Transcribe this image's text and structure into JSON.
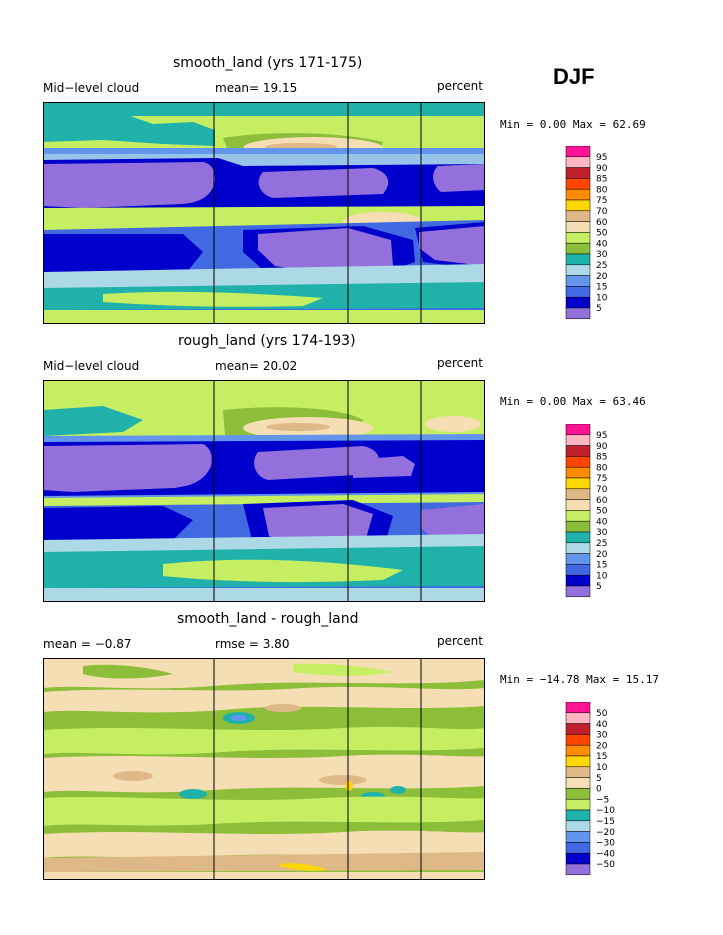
{
  "season": "DJF",
  "panels": [
    {
      "title": "smooth_land (yrs 171-175)",
      "left_label": "Mid−level cloud",
      "center_label": "mean=  19.15",
      "right_label": "percent",
      "minmax_label": "Min =   0.00 Max =  62.69"
    },
    {
      "title": "rough_land (yrs 174-193)",
      "left_label": "Mid−level cloud",
      "center_label": "mean=  20.02",
      "right_label": "percent",
      "minmax_label": "Min =   0.00 Max =  63.46"
    },
    {
      "title": "smooth_land - rough_land",
      "left_label": "mean =  −0.87",
      "center_label": "rmse =   3.80",
      "right_label": "percent",
      "minmax_label": "Min = −14.78 Max =  15.17"
    }
  ],
  "colorbar_field": {
    "labels": [
      "95",
      "90",
      "85",
      "80",
      "75",
      "70",
      "60",
      "50",
      "40",
      "30",
      "25",
      "20",
      "15",
      "10",
      "5"
    ],
    "colors": [
      "#ff1493",
      "#ffb6c1",
      "#c0202c",
      "#ff4500",
      "#ff8c00",
      "#ffd700",
      "#deb887",
      "#f5deb3",
      "#c5ee62",
      "#8cbe3a",
      "#20b2aa",
      "#add8e6",
      "#6495ed",
      "#4169e1",
      "#0000cd",
      "#9370db"
    ]
  },
  "colorbar_diff": {
    "labels": [
      "50",
      "40",
      "30",
      "20",
      "15",
      "10",
      "5",
      "0",
      "−5",
      "−10",
      "−15",
      "−20",
      "−30",
      "−40",
      "−50"
    ],
    "colors": [
      "#ff1493",
      "#ffb6c1",
      "#c0202c",
      "#ff4500",
      "#ff8c00",
      "#ffd700",
      "#deb887",
      "#f5deb3",
      "#8cbe3a",
      "#c5ee62",
      "#20b2aa",
      "#add8e6",
      "#6495ed",
      "#4169e1",
      "#0000cd",
      "#9370db"
    ]
  },
  "chart_data": [
    {
      "type": "heatmap",
      "title": "smooth_land (yrs 171-175)",
      "variable": "Mid-level cloud",
      "units": "percent",
      "season": "DJF",
      "mean": 19.15,
      "min": 0.0,
      "max": 62.69,
      "contour_levels": [
        5,
        10,
        15,
        20,
        25,
        30,
        40,
        50,
        60,
        70,
        75,
        80,
        85,
        90,
        95
      ]
    },
    {
      "type": "heatmap",
      "title": "rough_land (yrs 174-193)",
      "variable": "Mid-level cloud",
      "units": "percent",
      "season": "DJF",
      "mean": 20.02,
      "min": 0.0,
      "max": 63.46,
      "contour_levels": [
        5,
        10,
        15,
        20,
        25,
        30,
        40,
        50,
        60,
        70,
        75,
        80,
        85,
        90,
        95
      ]
    },
    {
      "type": "heatmap",
      "title": "smooth_land - rough_land",
      "units": "percent",
      "season": "DJF",
      "mean": -0.87,
      "rmse": 3.8,
      "min": -14.78,
      "max": 15.17,
      "contour_levels": [
        -50,
        -40,
        -30,
        -20,
        -15,
        -10,
        -5,
        0,
        5,
        10,
        15,
        20,
        30,
        40,
        50
      ]
    }
  ]
}
